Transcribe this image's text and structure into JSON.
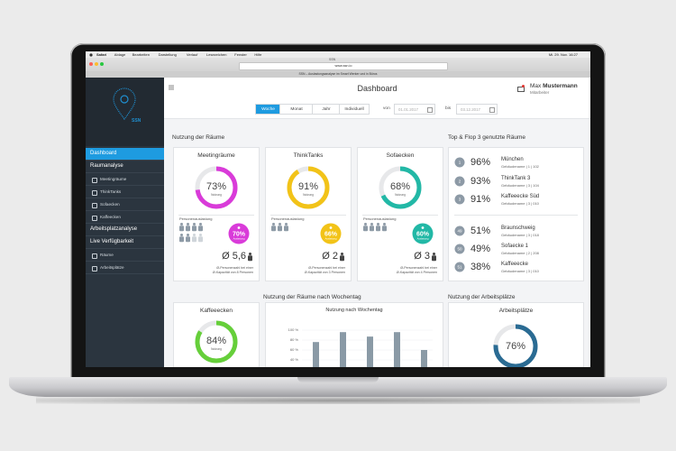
{
  "menubar": {
    "items": [
      "Safari",
      "Ablage",
      "Bearbeiten",
      "Darstellung",
      "Verlauf",
      "Lesezeichen",
      "Fenster",
      "Hilfe"
    ],
    "clock": "Mi. 29. Nov. 16:27"
  },
  "browser": {
    "window_title": "SSN",
    "url": "www.ssn.io",
    "tab": "SSN – Auslastungsanalyse im Smart Werker und in Büros"
  },
  "sidebar": {
    "logo": "SSN",
    "items": [
      {
        "label": "Dashboard",
        "level": 0,
        "active": true
      },
      {
        "label": "Raumanalyse",
        "level": 0
      },
      {
        "label": "Meetingräume",
        "level": 1
      },
      {
        "label": "ThinkTanks",
        "level": 1
      },
      {
        "label": "Sofaecken",
        "level": 1
      },
      {
        "label": "Kaffeecken",
        "level": 1
      },
      {
        "label": "Arbeitsplatzanalyse",
        "level": 0
      },
      {
        "label": "Live Verfügbarkeit",
        "level": 0
      },
      {
        "label": "Räume",
        "level": 1
      },
      {
        "label": "Arbeitsplätze",
        "level": 1
      }
    ]
  },
  "header": {
    "title": "Dashboard",
    "user_first": "Max",
    "user_last": "Mustermann",
    "role": "Mitarbeiter"
  },
  "filter": {
    "periods": [
      "Woche",
      "Monat",
      "Jahr",
      "Individuell"
    ],
    "active": 0,
    "from_label": "von",
    "from": "01.01.2017",
    "to_label": "bis",
    "to": "03.12.2017"
  },
  "rooms": {
    "title": "Nutzung der Räume",
    "cards": [
      {
        "name": "Meetingräume",
        "color": "#d93bd9",
        "gauge": {
          "value": 73,
          "label": "73%"
        },
        "gauge_caption": "Nutzung",
        "people_label": "Personenauslastung",
        "badge": "70%",
        "badge_caption": "Auslastung",
        "avg": "Ø 5,6",
        "note": [
          "Ø-Personenzahl bei einer",
          "Ø-Kapazität von 8 Personen"
        ]
      },
      {
        "name": "ThinkTanks",
        "color": "#f2c318",
        "gauge": {
          "value": 91,
          "label": "91%"
        },
        "gauge_caption": "Nutzung",
        "people_label": "Personenauslastung",
        "badge": "66%",
        "badge_caption": "Auslastung",
        "avg": "Ø 2",
        "note": [
          "Ø-Personenzahl bei einer",
          "Ø-Kapazität von 3 Personen"
        ]
      },
      {
        "name": "Sofaecken",
        "color": "#22b8a6",
        "gauge": {
          "value": 68,
          "label": "68%"
        },
        "gauge_caption": "Nutzung",
        "people_label": "Personenauslastung",
        "badge": "60%",
        "badge_caption": "Auslastung",
        "avg": "Ø 3",
        "note": [
          "Ø-Personenzahl bei einer",
          "Ø-Kapazität von 4 Personen"
        ]
      }
    ]
  },
  "top_flop": {
    "title": "Top & Flop 3 genutzte Räume",
    "items": [
      {
        "rank": 1,
        "percent": "96%",
        "name": "München",
        "location": "Gebäudename | 1 | 102"
      },
      {
        "rank": 2,
        "percent": "93%",
        "name": "ThinkTank 3",
        "location": "Gebäudename | 3 | 104"
      },
      {
        "rank": 3,
        "percent": "91%",
        "name": "Kaffeeecke Süd",
        "location": "Gebäudename | 3 | 010"
      },
      {
        "rank": 49,
        "percent": "51%",
        "name": "Braunschweig",
        "location": "Gebäudename | 3 | 018"
      },
      {
        "rank": 50,
        "percent": "49%",
        "name": "Sofaecke 1",
        "location": "Gebäudename | 2 | 208"
      },
      {
        "rank": 51,
        "percent": "38%",
        "name": "Kaffeeecke",
        "location": "Gebäudename | 3 | 010"
      }
    ]
  },
  "coffee": {
    "title": "Kaffeeecken",
    "color": "#66cf3a",
    "gauge": {
      "value": 84,
      "label": "84%"
    },
    "gauge_caption": "Nutzung"
  },
  "weekday": {
    "title": "Nutzung der Räume nach Wochentag",
    "chart_title": "Nutzung nach Wochentag",
    "color": "#8a9aa6",
    "yticks": [
      {
        "value": 100,
        "label": "100 %"
      },
      {
        "value": 80,
        "label": "80 %"
      },
      {
        "value": 60,
        "label": "60 %"
      },
      {
        "value": 40,
        "label": "40 %"
      }
    ],
    "values": [
      76,
      96,
      87,
      96,
      60
    ]
  },
  "workplaces": {
    "title": "Nutzung der Arbeitsplätze",
    "card_title": "Arbeitsplätze",
    "color": "#2a6b93",
    "gauge": {
      "value": 76,
      "label": "76%"
    }
  }
}
